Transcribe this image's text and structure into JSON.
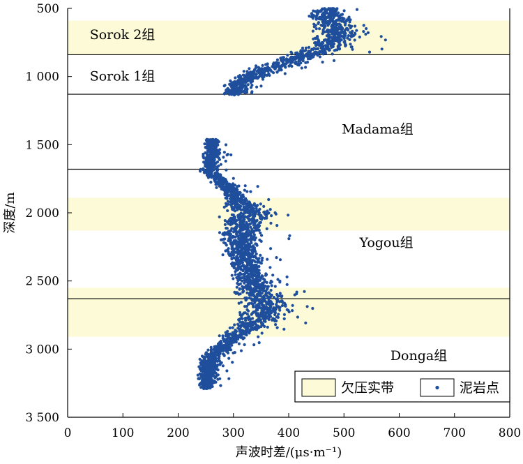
{
  "chart_data": {
    "type": "scatter",
    "xlabel": "声波时差/(μs·m⁻¹)",
    "ylabel": "深度/m",
    "xlim": [
      0,
      800
    ],
    "ylim": [
      500,
      3500
    ],
    "y_inverted": true,
    "xticks": [
      0,
      100,
      200,
      300,
      400,
      500,
      600,
      700,
      800
    ],
    "xtick_labels": [
      "0",
      "100",
      "200",
      "300",
      "400",
      "500",
      "600",
      "700",
      "800"
    ],
    "yticks": [
      500,
      1000,
      1500,
      2000,
      2500,
      3000,
      3500
    ],
    "ytick_labels": [
      "500",
      "1 000",
      "1 500",
      "2 000",
      "2 500",
      "3 000",
      "3 500"
    ],
    "undercompaction_bands": [
      {
        "top": 590,
        "bottom": 840
      },
      {
        "top": 1890,
        "bottom": 2130
      },
      {
        "top": 2550,
        "bottom": 2910
      }
    ],
    "formation_boundaries": [
      840,
      1130,
      1680,
      2630
    ],
    "formations": [
      {
        "name": "Sorok 2组",
        "depth": 725,
        "x": 5
      },
      {
        "name": "Sorok 1组",
        "depth": 1030,
        "x": 5
      },
      {
        "name": "Madama组",
        "depth": 1420,
        "x": 62
      },
      {
        "name": "Yogou组",
        "depth": 2250,
        "x": 66
      },
      {
        "name": "Donga组",
        "depth": 3080,
        "x": 73
      }
    ],
    "legend": {
      "position": "bottom-right",
      "items": [
        {
          "label": "欠压实带",
          "kind": "band",
          "color": "#fdfbd7"
        },
        {
          "label": "泥岩点",
          "kind": "point",
          "color": "#1f4f9c"
        }
      ]
    },
    "series": [
      {
        "name": "泥岩点",
        "trend": [
          [
            500,
            470
          ],
          [
            560,
            470
          ],
          [
            620,
            480
          ],
          [
            700,
            490
          ],
          [
            800,
            460
          ],
          [
            850,
            420
          ],
          [
            900,
            395
          ],
          [
            950,
            360
          ],
          [
            1000,
            330
          ],
          [
            1060,
            310
          ],
          [
            1130,
            300
          ],
          [
            1460,
            260
          ],
          [
            1550,
            262
          ],
          [
            1700,
            255
          ],
          [
            1800,
            290
          ],
          [
            1900,
            305
          ],
          [
            2000,
            330
          ],
          [
            2100,
            320
          ],
          [
            2200,
            312
          ],
          [
            2300,
            318
          ],
          [
            2400,
            325
          ],
          [
            2500,
            335
          ],
          [
            2600,
            345
          ],
          [
            2700,
            360
          ],
          [
            2800,
            340
          ],
          [
            2900,
            305
          ],
          [
            3000,
            275
          ],
          [
            3100,
            255
          ],
          [
            3200,
            255
          ],
          [
            3290,
            250
          ]
        ],
        "spread": [
          [
            500,
            40
          ],
          [
            700,
            50
          ],
          [
            900,
            55
          ],
          [
            1100,
            25
          ],
          [
            1500,
            18
          ],
          [
            1700,
            20
          ],
          [
            1900,
            35
          ],
          [
            2000,
            60
          ],
          [
            2300,
            40
          ],
          [
            2700,
            60
          ],
          [
            2900,
            35
          ],
          [
            3100,
            30
          ],
          [
            3290,
            20
          ]
        ]
      }
    ]
  }
}
